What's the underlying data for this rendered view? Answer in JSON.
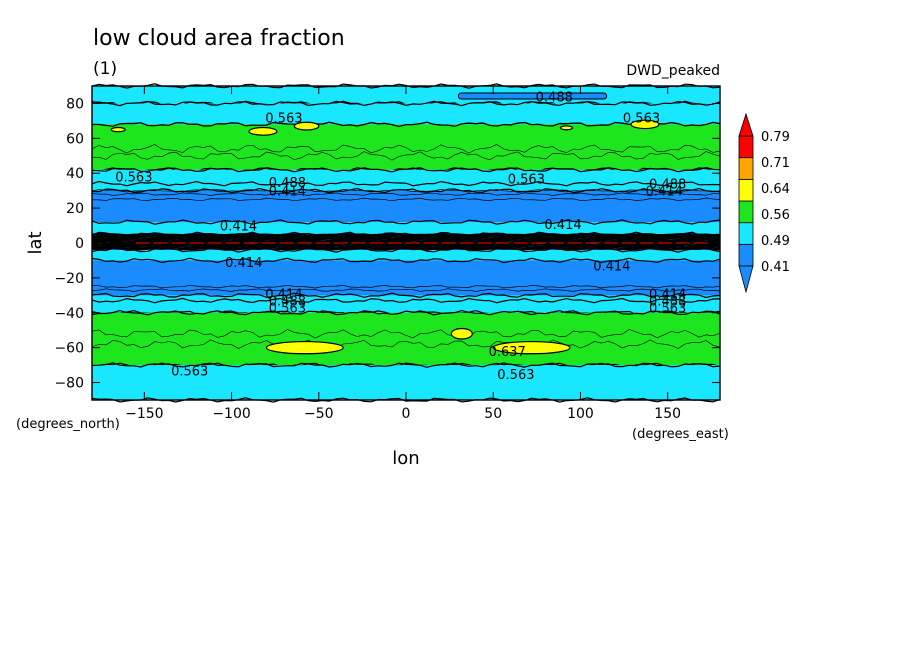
{
  "chart_data": {
    "type": "heatmap",
    "title": "low cloud area fraction",
    "subtitle": "(1)",
    "dataset": "DWD_peaked",
    "xlabel": "lon",
    "ylabel": "lat",
    "xunits": "(degrees_east)",
    "yunits": "(degrees_north)",
    "xlim": [
      -180,
      180
    ],
    "ylim": [
      -90,
      90
    ],
    "xticks": [
      -150,
      -100,
      -50,
      0,
      50,
      100,
      150
    ],
    "yticks": [
      -80,
      -60,
      -40,
      -20,
      0,
      20,
      40,
      60,
      80
    ],
    "colorbar": {
      "levels": [
        0.41,
        0.49,
        0.56,
        0.64,
        0.71,
        0.79
      ],
      "colors": [
        "#1a8cff",
        "#19e6ff",
        "#1ee61e",
        "#ffff00",
        "#ffa500",
        "#ff0000"
      ],
      "under_color": "#1a8cff",
      "over_color": "#ff0000"
    },
    "bands": [
      {
        "lat": [
          80,
          90
        ],
        "value": "0.49-0.56"
      },
      {
        "lat": [
          68,
          80
        ],
        "value": "0.49-0.56"
      },
      {
        "lat": [
          42,
          68
        ],
        "value": "0.56-0.64"
      },
      {
        "lat": [
          34,
          42
        ],
        "value": "0.49-0.56"
      },
      {
        "lat": [
          12,
          30
        ],
        "value": "<0.41"
      },
      {
        "lat": [
          -4,
          5
        ],
        "value": "0.41-0.49"
      },
      {
        "lat": [
          -30,
          -10
        ],
        "value": "<0.41"
      },
      {
        "lat": [
          -40,
          -33
        ],
        "value": "0.49-0.56"
      },
      {
        "lat": [
          -70,
          -40
        ],
        "value": "0.56-0.64"
      },
      {
        "lat": [
          -90,
          -70
        ],
        "value": "0.49-0.56"
      }
    ],
    "contour_labels": [
      {
        "text": "0.488",
        "lon": 85,
        "lat": 84
      },
      {
        "text": "0.563",
        "lon": -70,
        "lat": 72
      },
      {
        "text": "0.563",
        "lon": 135,
        "lat": 72
      },
      {
        "text": "0.563",
        "lon": -156,
        "lat": 38
      },
      {
        "text": "0.563",
        "lon": 69,
        "lat": 37
      },
      {
        "text": "0.488",
        "lon": -68,
        "lat": 35
      },
      {
        "text": "0.414",
        "lon": -68,
        "lat": 30
      },
      {
        "text": "0.488",
        "lon": 150,
        "lat": 34
      },
      {
        "text": "0.414",
        "lon": 148,
        "lat": 30
      },
      {
        "text": "0.414",
        "lon": -96,
        "lat": 10
      },
      {
        "text": "0.414",
        "lon": 90,
        "lat": 11
      },
      {
        "text": "0.414",
        "lon": -93,
        "lat": -11
      },
      {
        "text": "0.414",
        "lon": 118,
        "lat": -13
      },
      {
        "text": "0.414",
        "lon": -70,
        "lat": -29
      },
      {
        "text": "0.488",
        "lon": -68,
        "lat": -33
      },
      {
        "text": "0.563",
        "lon": -68,
        "lat": -37
      },
      {
        "text": "0.414",
        "lon": 150,
        "lat": -29
      },
      {
        "text": "0.488",
        "lon": 150,
        "lat": -33
      },
      {
        "text": "0.563",
        "lon": 150,
        "lat": -37
      },
      {
        "text": "0.637",
        "lon": 58,
        "lat": -62
      },
      {
        "text": "0.563",
        "lon": -124,
        "lat": -73
      },
      {
        "text": "0.563",
        "lon": 63,
        "lat": -75
      }
    ],
    "high_patches": [
      {
        "lon": -82,
        "lat": 64,
        "rlon": 8,
        "rlat": 2.2
      },
      {
        "lon": -57,
        "lat": 67,
        "rlon": 7,
        "rlat": 2.2
      },
      {
        "lon": 137,
        "lat": 68,
        "rlon": 8,
        "rlat": 2.4
      },
      {
        "lon": -165,
        "lat": 65,
        "rlon": 4,
        "rlat": 1.2
      },
      {
        "lon": 92,
        "lat": 66,
        "rlon": 3.5,
        "rlat": 1.1
      },
      {
        "lon": -58,
        "lat": -60,
        "rlon": 22,
        "rlat": 3.5
      },
      {
        "lon": 72,
        "lat": -60,
        "rlon": 22,
        "rlat": 3.5
      },
      {
        "lon": 32,
        "lat": -52,
        "rlon": 6,
        "rlat": 3
      }
    ]
  }
}
